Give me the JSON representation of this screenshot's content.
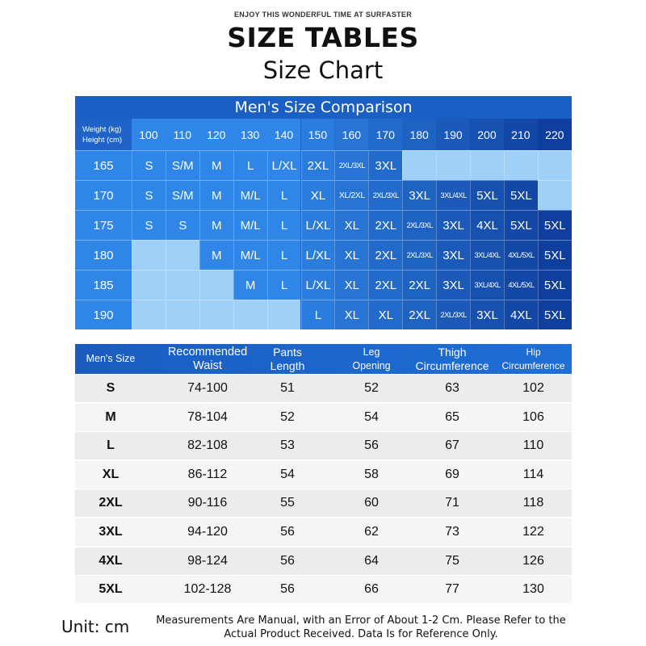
{
  "header": {
    "tagline": "ENJOY THIS WONDERFUL TIME AT SURFASTER",
    "title": "SIZE TABLES",
    "subtitle": "Size Chart"
  },
  "comparison": {
    "title": "Men's Size Comparison",
    "corner_weight": "Weight (kg)",
    "corner_height": "Height (cm)",
    "weights": [
      "100",
      "110",
      "120",
      "130",
      "140",
      "150",
      "160",
      "170",
      "180",
      "190",
      "200",
      "210",
      "220"
    ],
    "rows": [
      {
        "height": "165",
        "cells": [
          "S",
          "S/M",
          "M",
          "L",
          "L/XL",
          "2XL",
          "2XL/3XL",
          "3XL",
          "",
          "",
          "",
          "",
          ""
        ]
      },
      {
        "height": "170",
        "cells": [
          "S",
          "S/M",
          "M",
          "M/L",
          "L",
          "XL",
          "XL/2XL",
          "2XL/3XL",
          "3XL",
          "3XL/4XL",
          "5XL",
          "5XL",
          ""
        ]
      },
      {
        "height": "175",
        "cells": [
          "S",
          "S",
          "M",
          "M/L",
          "L",
          "L/XL",
          "XL",
          "2XL",
          "2XL/3XL",
          "3XL",
          "4XL",
          "5XL",
          "5XL"
        ]
      },
      {
        "height": "180",
        "cells": [
          "",
          "",
          "M",
          "M/L",
          "L",
          "L/XL",
          "XL",
          "2XL",
          "2XL/3XL",
          "3XL",
          "3XL/4XL",
          "4XL/5XL",
          "5XL"
        ]
      },
      {
        "height": "185",
        "cells": [
          "",
          "",
          "",
          "M",
          "L",
          "L/XL",
          "XL",
          "2XL",
          "2XL",
          "3XL",
          "3XL/4XL",
          "4XL/5XL",
          "5XL"
        ]
      },
      {
        "height": "190",
        "cells": [
          "",
          "",
          "",
          "",
          "",
          "L",
          "XL",
          "XL",
          "2XL",
          "2XL/3XL",
          "3XL",
          "4XL",
          "5XL"
        ]
      }
    ]
  },
  "details": {
    "headers": [
      [
        "Men's Size"
      ],
      [
        "Recommended",
        "Waist"
      ],
      [
        "Pants",
        "Length"
      ],
      [
        "Leg",
        "Opening"
      ],
      [
        "Thigh",
        "Circumference"
      ],
      [
        "Hip",
        "Circumference"
      ]
    ],
    "rows": [
      [
        "S",
        "74-100",
        "51",
        "52",
        "63",
        "102"
      ],
      [
        "M",
        "78-104",
        "52",
        "54",
        "65",
        "106"
      ],
      [
        "L",
        "82-108",
        "53",
        "56",
        "67",
        "110"
      ],
      [
        "XL",
        "86-112",
        "54",
        "58",
        "69",
        "114"
      ],
      [
        "2XL",
        "90-116",
        "55",
        "60",
        "71",
        "118"
      ],
      [
        "3XL",
        "94-120",
        "56",
        "62",
        "73",
        "122"
      ],
      [
        "4XL",
        "98-124",
        "56",
        "64",
        "75",
        "126"
      ],
      [
        "5XL",
        "102-128",
        "56",
        "66",
        "77",
        "130"
      ]
    ]
  },
  "footer": {
    "unit": "Unit: cm",
    "note_line1": "Measurements Are Manual, with an Error of About 1-2 Cm. Please Refer to the",
    "note_line2": "Actual Product Received. Data Is for Reference Only."
  },
  "colors": {
    "blue_light": "#2f86e6",
    "blue_mid": "#1f63c8",
    "blue_dark": "#0f3f9e",
    "empty": "#9fd0f7"
  }
}
